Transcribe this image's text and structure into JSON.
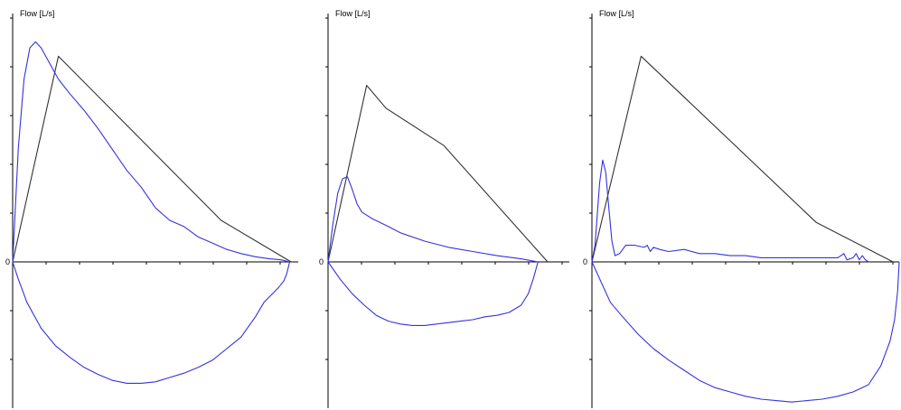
{
  "colors": {
    "measured": "#3333dd",
    "predicted": "#333333",
    "axis": "#000000",
    "background": "#ffffff"
  },
  "chart_data": [
    {
      "type": "line",
      "ylabel": "Flow [L/s]",
      "zero_label": "0",
      "ylim": [
        -1,
        1
      ],
      "xlim": [
        0,
        1
      ],
      "grid": false,
      "series": [
        {
          "role": "predicted",
          "x": [
            0,
            0.16,
            0.73,
            0.975
          ],
          "y": [
            0,
            0.99,
            0.2,
            0
          ]
        },
        {
          "role": "expiratory",
          "x": [
            0,
            0.02,
            0.04,
            0.06,
            0.08,
            0.1,
            0.12,
            0.16,
            0.2,
            0.25,
            0.3,
            0.35,
            0.4,
            0.45,
            0.5,
            0.55,
            0.6,
            0.65,
            0.7,
            0.75,
            0.8,
            0.85,
            0.9,
            0.94,
            0.97
          ],
          "y": [
            0,
            0.55,
            0.88,
            1.03,
            1.06,
            1.03,
            0.98,
            0.88,
            0.81,
            0.73,
            0.64,
            0.54,
            0.44,
            0.36,
            0.26,
            0.2,
            0.17,
            0.12,
            0.09,
            0.06,
            0.04,
            0.025,
            0.015,
            0.01,
            0
          ]
        },
        {
          "role": "inspiratory",
          "x": [
            0,
            0.02,
            0.05,
            0.1,
            0.15,
            0.2,
            0.25,
            0.3,
            0.35,
            0.4,
            0.45,
            0.5,
            0.55,
            0.6,
            0.65,
            0.7,
            0.75,
            0.8,
            0.85,
            0.88,
            0.91,
            0.93,
            0.95,
            0.96,
            0.97
          ],
          "y": [
            0,
            -0.12,
            -0.28,
            -0.46,
            -0.58,
            -0.66,
            -0.73,
            -0.78,
            -0.82,
            -0.84,
            -0.84,
            -0.83,
            -0.8,
            -0.77,
            -0.73,
            -0.68,
            -0.6,
            -0.52,
            -0.38,
            -0.28,
            -0.22,
            -0.18,
            -0.13,
            -0.08,
            0
          ]
        }
      ]
    },
    {
      "type": "line",
      "ylabel": "Flow [L/s]",
      "zero_label": "0",
      "ylim": [
        -1,
        1
      ],
      "xlim": [
        0,
        1
      ],
      "grid": false,
      "series": [
        {
          "role": "predicted",
          "x": [
            0,
            0.16,
            0.24,
            0.48,
            0.91
          ],
          "y": [
            0,
            0.85,
            0.74,
            0.56,
            0
          ]
        },
        {
          "role": "expiratory",
          "x": [
            0,
            0.02,
            0.04,
            0.06,
            0.08,
            0.1,
            0.12,
            0.14,
            0.18,
            0.25,
            0.3,
            0.4,
            0.5,
            0.6,
            0.7,
            0.8,
            0.87
          ],
          "y": [
            0,
            0.18,
            0.33,
            0.4,
            0.41,
            0.35,
            0.28,
            0.24,
            0.21,
            0.17,
            0.14,
            0.1,
            0.07,
            0.05,
            0.03,
            0.015,
            0
          ]
        },
        {
          "role": "inspiratory",
          "x": [
            0,
            0.05,
            0.1,
            0.15,
            0.2,
            0.25,
            0.3,
            0.35,
            0.4,
            0.45,
            0.5,
            0.55,
            0.6,
            0.65,
            0.7,
            0.75,
            0.8,
            0.83,
            0.85,
            0.87
          ],
          "y": [
            0,
            -0.12,
            -0.22,
            -0.3,
            -0.37,
            -0.41,
            -0.43,
            -0.44,
            -0.44,
            -0.43,
            -0.42,
            -0.41,
            -0.4,
            -0.38,
            -0.37,
            -0.35,
            -0.3,
            -0.22,
            -0.12,
            0
          ]
        }
      ]
    },
    {
      "type": "line",
      "ylabel": "Flow [L/s]",
      "zero_label": "0",
      "ylim": [
        -1,
        1
      ],
      "xlim": [
        0,
        1
      ],
      "grid": false,
      "series": [
        {
          "role": "predicted",
          "x": [
            0,
            0.16,
            0.73,
            0.98
          ],
          "y": [
            0,
            0.99,
            0.19,
            0
          ]
        },
        {
          "role": "expiratory",
          "x": [
            0,
            0.01,
            0.025,
            0.035,
            0.045,
            0.055,
            0.065,
            0.075,
            0.09,
            0.11,
            0.14,
            0.17,
            0.18,
            0.19,
            0.2,
            0.22,
            0.25,
            0.3,
            0.35,
            0.4,
            0.45,
            0.5,
            0.55,
            0.6,
            0.65,
            0.7,
            0.75,
            0.8,
            0.82,
            0.83,
            0.85,
            0.86,
            0.87,
            0.88,
            0.89,
            0.9
          ],
          "y": [
            0,
            0.08,
            0.38,
            0.49,
            0.43,
            0.26,
            0.1,
            0.03,
            0.04,
            0.08,
            0.08,
            0.07,
            0.08,
            0.05,
            0.07,
            0.06,
            0.05,
            0.06,
            0.04,
            0.04,
            0.03,
            0.03,
            0.02,
            0.02,
            0.02,
            0.02,
            0.02,
            0.02,
            0.04,
            0.01,
            0.02,
            0.04,
            0.01,
            0.03,
            0.01,
            0
          ]
        },
        {
          "role": "inspiratory",
          "x": [
            0,
            0.03,
            0.06,
            0.1,
            0.15,
            0.2,
            0.25,
            0.3,
            0.35,
            0.4,
            0.45,
            0.5,
            0.55,
            0.6,
            0.65,
            0.7,
            0.75,
            0.8,
            0.85,
            0.9,
            0.94,
            0.97,
            0.985,
            0.995,
            1.0
          ],
          "y": [
            0,
            -0.14,
            -0.28,
            -0.38,
            -0.5,
            -0.6,
            -0.68,
            -0.75,
            -0.82,
            -0.87,
            -0.9,
            -0.93,
            -0.95,
            -0.96,
            -0.97,
            -0.96,
            -0.95,
            -0.93,
            -0.9,
            -0.85,
            -0.72,
            -0.55,
            -0.4,
            -0.2,
            0
          ]
        }
      ]
    }
  ]
}
